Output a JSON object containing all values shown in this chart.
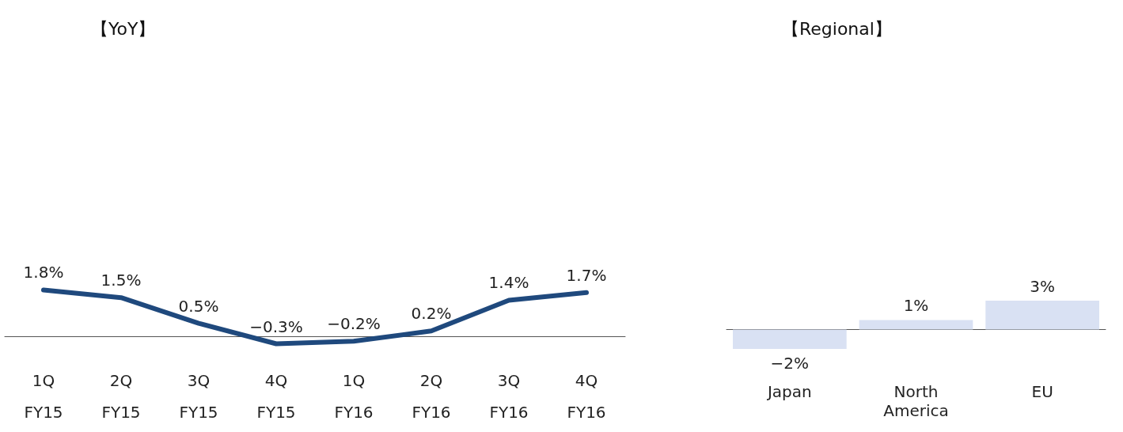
{
  "chart_data": [
    {
      "type": "line",
      "title": "【YoY】",
      "categories": [
        "1Q\nFY15",
        "2Q\nFY15",
        "3Q\nFY15",
        "4Q\nFY15",
        "1Q\nFY16",
        "2Q\nFY16",
        "3Q\nFY16",
        "4Q\nFY16"
      ],
      "series": [
        {
          "color": "#1f497d",
          "values": [
            1.8,
            1.5,
            0.5,
            -0.3,
            -0.2,
            0.2,
            1.4,
            1.7
          ],
          "value_labels": [
            "1.8%",
            "1.5%",
            "0.5%",
            "−0.3%",
            "−0.2%",
            "0.2%",
            "1.4%",
            "1.7%"
          ]
        }
      ],
      "marker": "none",
      "grid": false
    },
    {
      "type": "bar",
      "title": "【Regional】",
      "categories": [
        "Japan",
        "North\nAmerica",
        "EU"
      ],
      "series": [
        {
          "color": "#d9e1f3",
          "values": [
            -2,
            1,
            3
          ],
          "value_labels": [
            "−2%",
            "1%",
            "3%"
          ]
        }
      ],
      "grid": false
    }
  ]
}
